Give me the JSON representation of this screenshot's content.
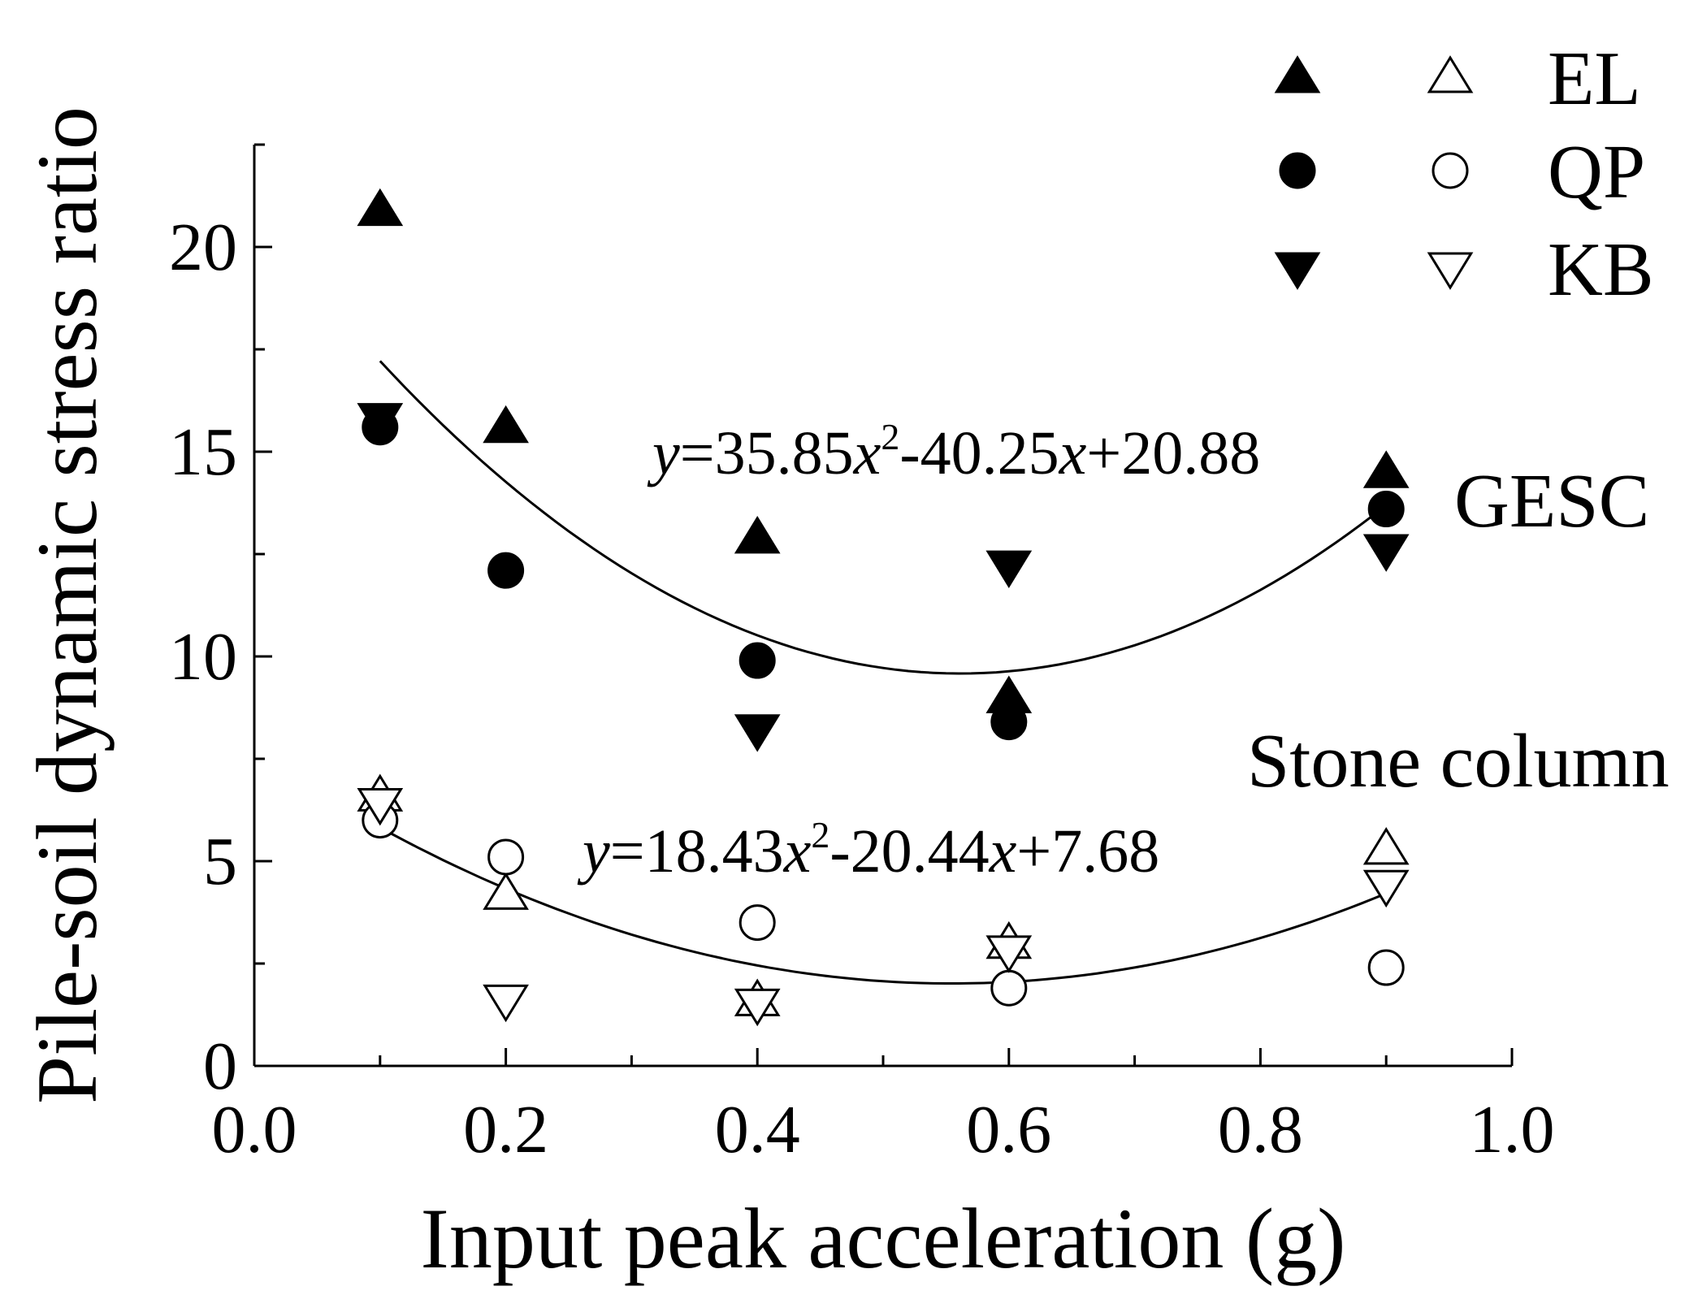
{
  "chart_data": {
    "type": "scatter",
    "xlabel": "Input peak acceleration (g)",
    "ylabel": "Pile-soil dynamic stress ratio",
    "xlim": [
      0.0,
      1.0
    ],
    "ylim": [
      0,
      22.5
    ],
    "x_ticks": [
      "0.0",
      "0.2",
      "0.4",
      "0.6",
      "0.8",
      "1.0"
    ],
    "y_ticks": [
      "0",
      "5",
      "10",
      "15",
      "20"
    ],
    "legend": [
      {
        "filled": "triangle-up-filled",
        "hollow": "triangle-up-open",
        "label": "EL"
      },
      {
        "filled": "circle-filled",
        "hollow": "circle-open",
        "label": "QP"
      },
      {
        "filled": "triangle-down-filled",
        "hollow": "triangle-down-open",
        "label": "KB"
      }
    ],
    "series": [
      {
        "name": "GESC EL",
        "group": "GESC",
        "marker": "triangle-up-filled",
        "x": [
          0.1,
          0.2,
          0.4,
          0.6,
          0.9
        ],
        "y": [
          20.9,
          15.6,
          12.9,
          9.0,
          14.5
        ]
      },
      {
        "name": "GESC QP",
        "group": "GESC",
        "marker": "circle-filled",
        "x": [
          0.1,
          0.2,
          0.4,
          0.6,
          0.9
        ],
        "y": [
          15.6,
          12.1,
          9.9,
          8.4,
          13.6
        ]
      },
      {
        "name": "GESC KB",
        "group": "GESC",
        "marker": "triangle-down-filled",
        "x": [
          0.1,
          0.4,
          0.6,
          0.9
        ],
        "y": [
          15.8,
          8.2,
          12.2,
          12.6
        ]
      },
      {
        "name": "Stone column EL",
        "group": "Stone column",
        "marker": "triangle-up-open",
        "x": [
          0.1,
          0.2,
          0.4,
          0.6,
          0.9
        ],
        "y": [
          6.6,
          4.2,
          1.6,
          3.0,
          5.3
        ]
      },
      {
        "name": "Stone column QP",
        "group": "Stone column",
        "marker": "circle-open",
        "x": [
          0.1,
          0.2,
          0.4,
          0.6,
          0.9
        ],
        "y": [
          6.0,
          5.1,
          3.5,
          1.9,
          2.4
        ]
      },
      {
        "name": "Stone column KB",
        "group": "Stone column",
        "marker": "triangle-down-open",
        "x": [
          0.1,
          0.2,
          0.4,
          0.6,
          0.9
        ],
        "y": [
          6.4,
          1.6,
          1.5,
          2.8,
          4.4
        ]
      }
    ],
    "fits": [
      {
        "group": "GESC",
        "label": "GESC",
        "a": 35.85,
        "b": -40.25,
        "c": 20.88,
        "x_range": [
          0.1,
          0.9
        ],
        "equation_parts": [
          "y",
          "=35.85",
          "x",
          "2",
          "-40.25",
          "x",
          "+20.88"
        ]
      },
      {
        "group": "Stone column",
        "label": "Stone column",
        "a": 18.43,
        "b": -20.44,
        "c": 7.68,
        "x_range": [
          0.1,
          0.9
        ],
        "equation_parts": [
          "y",
          "=18.43",
          "x",
          "2",
          "-20.44",
          "x",
          "+7.68"
        ]
      }
    ]
  }
}
